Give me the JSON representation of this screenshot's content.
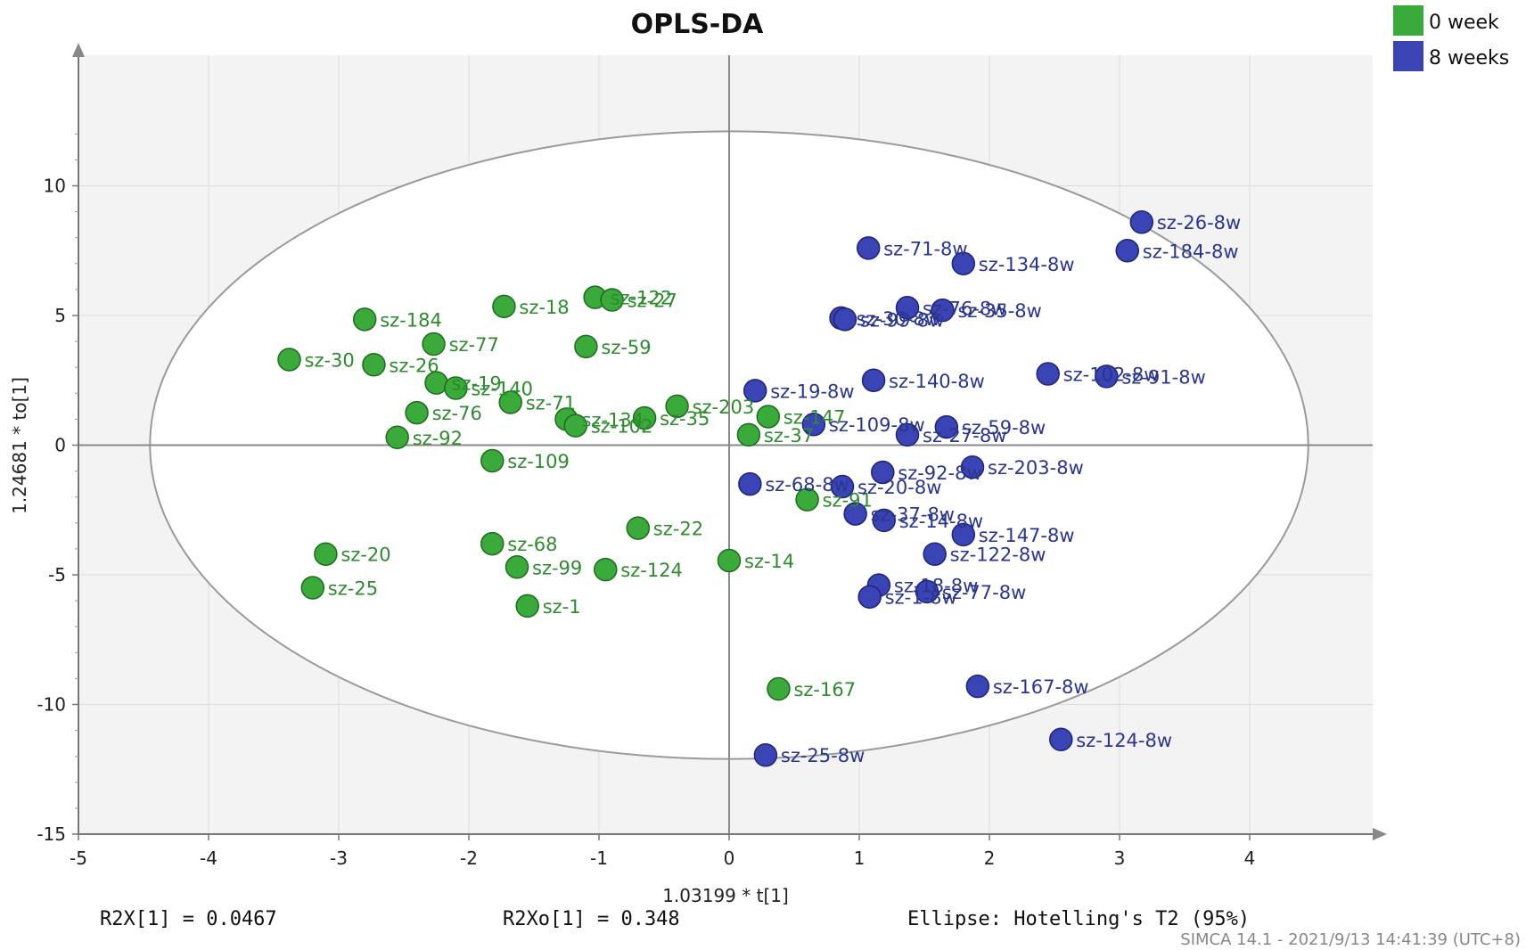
{
  "chart_data": {
    "type": "scatter",
    "title": "OPLS-DA",
    "xlabel": "1.03199 * t[1]",
    "ylabel": "1.24681 * to[1]",
    "xlim": [
      -5,
      5
    ],
    "ylim": [
      -15,
      15
    ],
    "xticks": [
      -5,
      -4,
      -3,
      -2,
      -1,
      0,
      1,
      2,
      3,
      4
    ],
    "yticks": [
      -15,
      -10,
      -5,
      0,
      5,
      10
    ],
    "grid": true,
    "legend_position": "top-right",
    "ellipse": {
      "label": "Hotelling's T2 (95%)",
      "rx": 4.45,
      "ry": 12.1
    },
    "stats": {
      "r2x": "R2X[1] = 0.0467",
      "r2xo": "R2Xo[1] = 0.348",
      "ellipse": "Ellipse: Hotelling's T2 (95%)"
    },
    "footer": "SIMCA 14.1 - 2021/9/13 14:41:39 (UTC+8)",
    "series": [
      {
        "name": "0 week",
        "color": "#3aaa3a",
        "stroke": "#1f6b1f",
        "label_color": "#2e8b2e",
        "points": [
          {
            "label": "sz-184",
            "x": -2.8,
            "y": 4.85
          },
          {
            "label": "sz-18",
            "x": -1.73,
            "y": 5.35
          },
          {
            "label": "sz-122",
            "x": -1.03,
            "y": 5.7
          },
          {
            "label": "sz-27",
            "x": -0.9,
            "y": 5.6
          },
          {
            "label": "sz-77",
            "x": -2.27,
            "y": 3.9
          },
          {
            "label": "sz-59",
            "x": -1.1,
            "y": 3.8
          },
          {
            "label": "sz-30",
            "x": -3.38,
            "y": 3.3
          },
          {
            "label": "sz-26",
            "x": -2.73,
            "y": 3.1
          },
          {
            "label": "sz-19",
            "x": -2.25,
            "y": 2.4
          },
          {
            "label": "sz-140",
            "x": -2.1,
            "y": 2.2
          },
          {
            "label": "sz-71",
            "x": -1.68,
            "y": 1.65
          },
          {
            "label": "sz-76",
            "x": -2.4,
            "y": 1.25
          },
          {
            "label": "sz-134",
            "x": -1.25,
            "y": 1.0
          },
          {
            "label": "sz-102",
            "x": -1.18,
            "y": 0.75
          },
          {
            "label": "sz-35",
            "x": -0.65,
            "y": 1.05
          },
          {
            "label": "sz-203",
            "x": -0.4,
            "y": 1.5
          },
          {
            "label": "sz-147",
            "x": 0.3,
            "y": 1.1
          },
          {
            "label": "sz-37",
            "x": 0.15,
            "y": 0.4
          },
          {
            "label": "sz-92",
            "x": -2.55,
            "y": 0.3
          },
          {
            "label": "sz-109",
            "x": -1.82,
            "y": -0.6
          },
          {
            "label": "sz-91",
            "x": 0.6,
            "y": -2.1
          },
          {
            "label": "sz-22",
            "x": -0.7,
            "y": -3.2
          },
          {
            "label": "sz-68",
            "x": -1.82,
            "y": -3.8
          },
          {
            "label": "sz-20",
            "x": -3.1,
            "y": -4.2
          },
          {
            "label": "sz-99",
            "x": -1.63,
            "y": -4.7
          },
          {
            "label": "sz-124",
            "x": -0.95,
            "y": -4.8
          },
          {
            "label": "sz-14",
            "x": 0.0,
            "y": -4.45
          },
          {
            "label": "sz-25",
            "x": -3.2,
            "y": -5.5
          },
          {
            "label": "sz-1",
            "x": -1.55,
            "y": -6.2
          },
          {
            "label": "sz-167",
            "x": 0.38,
            "y": -9.4
          }
        ]
      },
      {
        "name": "8 weeks",
        "color": "#3a44b4",
        "stroke": "#1e2575",
        "label_color": "#2a3590",
        "points": [
          {
            "label": "sz-26-8w",
            "x": 3.17,
            "y": 8.6
          },
          {
            "label": "sz-184-8w",
            "x": 3.06,
            "y": 7.5
          },
          {
            "label": "sz-71-8w",
            "x": 1.07,
            "y": 7.6
          },
          {
            "label": "sz-134-8w",
            "x": 1.8,
            "y": 7.0
          },
          {
            "label": "sz-76-8w",
            "x": 1.37,
            "y": 5.3
          },
          {
            "label": "sz-35-8w",
            "x": 1.64,
            "y": 5.2
          },
          {
            "label": "sz-30-8w",
            "x": 0.86,
            "y": 4.9
          },
          {
            "label": "sz-99-8w",
            "x": 0.89,
            "y": 4.85
          },
          {
            "label": "sz-102-8w",
            "x": 2.45,
            "y": 2.75
          },
          {
            "label": "sz-91-8w",
            "x": 2.9,
            "y": 2.65
          },
          {
            "label": "sz-19-8w",
            "x": 0.2,
            "y": 2.1
          },
          {
            "label": "sz-140-8w",
            "x": 1.11,
            "y": 2.5
          },
          {
            "label": "sz-109-8w",
            "x": 0.65,
            "y": 0.8
          },
          {
            "label": "sz-59-8w",
            "x": 1.67,
            "y": 0.7
          },
          {
            "label": "sz-27-8w",
            "x": 1.37,
            "y": 0.4
          },
          {
            "label": "sz-203-8w",
            "x": 1.87,
            "y": -0.85
          },
          {
            "label": "sz-92-8w",
            "x": 1.18,
            "y": -1.05
          },
          {
            "label": "sz-68-8w",
            "x": 0.16,
            "y": -1.5
          },
          {
            "label": "sz-20-8w",
            "x": 0.87,
            "y": -1.6
          },
          {
            "label": "sz-37-8w",
            "x": 0.97,
            "y": -2.65
          },
          {
            "label": "sz-14-8w",
            "x": 1.19,
            "y": -2.9
          },
          {
            "label": "sz-147-8w",
            "x": 1.8,
            "y": -3.45
          },
          {
            "label": "sz-122-8w",
            "x": 1.58,
            "y": -4.2
          },
          {
            "label": "sz-18-8w",
            "x": 1.15,
            "y": -5.4
          },
          {
            "label": "sz-77-8w",
            "x": 1.52,
            "y": -5.65
          },
          {
            "label": "sz-1-8w",
            "x": 1.08,
            "y": -5.85
          },
          {
            "label": "sz-167-8w",
            "x": 1.91,
            "y": -9.3
          },
          {
            "label": "sz-124-8w",
            "x": 2.55,
            "y": -11.35
          },
          {
            "label": "sz-25-8w",
            "x": 0.28,
            "y": -11.95
          }
        ]
      }
    ]
  }
}
